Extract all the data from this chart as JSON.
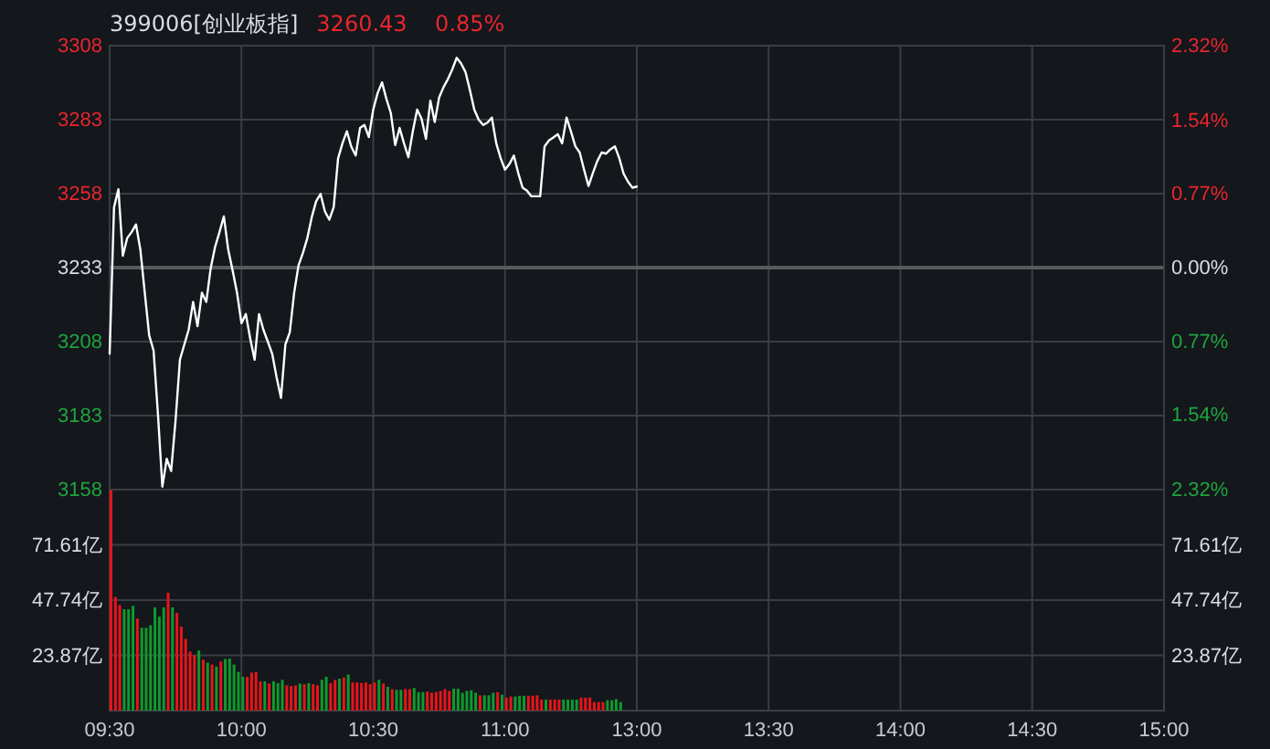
{
  "chart_data": [
    {
      "type": "line",
      "title": "399006[创业板指]",
      "subtitle": "3260.43    0.85%",
      "categories": [
        null,
        null,
        null,
        null,
        null,
        null,
        null,
        null,
        null,
        null,
        null,
        null,
        null,
        null,
        null,
        null,
        null,
        null,
        null,
        null,
        null,
        null,
        null,
        null,
        null,
        null,
        null,
        null,
        null,
        null,
        null,
        null,
        null,
        null,
        null,
        null,
        null,
        null,
        null,
        null,
        null,
        null,
        null,
        null,
        null,
        null,
        null,
        null,
        null,
        null,
        null,
        null,
        null,
        null,
        null,
        null,
        null,
        null,
        null,
        null,
        null,
        null,
        null,
        null,
        null,
        null,
        null,
        null,
        null,
        null,
        null,
        null,
        null,
        null,
        null,
        null,
        null,
        null,
        null,
        null,
        null,
        null,
        null,
        null,
        null,
        null,
        null,
        null,
        null,
        null,
        null,
        null,
        null,
        null,
        null,
        null,
        null,
        null,
        null,
        null,
        null,
        null,
        null,
        null,
        null,
        null,
        null,
        null,
        null,
        null,
        null,
        null,
        null,
        null,
        null,
        null,
        null,
        null,
        null,
        null,
        null,
        null,
        null,
        null,
        null,
        null,
        null,
        null,
        null,
        null,
        null,
        null,
        null,
        null,
        null,
        null,
        null,
        null,
        null,
        null,
        null,
        null,
        null,
        null,
        null,
        null,
        null,
        null,
        null,
        null,
        null,
        null,
        null,
        null,
        null,
        null,
        null,
        null,
        null,
        null,
        null,
        null,
        null,
        null,
        null,
        null,
        null,
        null,
        null,
        null,
        null,
        null,
        null,
        null,
        null,
        null,
        null,
        null,
        null,
        null,
        null,
        null,
        null,
        null,
        null,
        null,
        null,
        null,
        null,
        null,
        null,
        null,
        null,
        null,
        null,
        null,
        null,
        null,
        null,
        null,
        null,
        null,
        null,
        null,
        null,
        null,
        null,
        null,
        null,
        null,
        null,
        null,
        null,
        null,
        null,
        null,
        null,
        null,
        null,
        null,
        null,
        null,
        null,
        null,
        null,
        null,
        null,
        null,
        null,
        null,
        null,
        null,
        null,
        null,
        null,
        null,
        null,
        null,
        null,
        null,
        null
      ],
      "ylim": [
        3158,
        3308
      ],
      "yticks": [
        3158,
        3183,
        3208,
        3233,
        3258,
        3283,
        3308
      ],
      "y2lim": [
        -2.32,
        2.32
      ],
      "y2ticks": [
        {
          "value": -2.32,
          "label": "2.32%"
        },
        {
          "value": -1.54,
          "label": "1.54%"
        },
        {
          "value": -0.77,
          "label": "0.77%"
        },
        {
          "value": 0,
          "label": "0.00%"
        },
        {
          "value": 0.77,
          "label": "0.77%"
        },
        {
          "value": 1.54,
          "label": "1.54%"
        },
        {
          "value": 2.32,
          "label": "2.32%"
        }
      ],
      "tick_labels": "y",
      "grid": true,
      "marker": "none",
      "line_style": "solid",
      "ref_lines": [
        {
          "axis": "y",
          "value": 3233,
          "color": "#5a5a5a"
        }
      ],
      "series": [
        {
          "color": "#ffffff",
          "values": [
            3203.9,
            3253.4,
            3259.5,
            3237,
            3243,
            3245,
            3247.6,
            3239,
            3224.5,
            3210.1,
            3205,
            3183.4,
            3159,
            3168.4,
            3164.3,
            3181.3,
            3201.9,
            3207,
            3212.1,
            3221.4,
            3213.2,
            3224.5,
            3221.4,
            3232.8,
            3240,
            3245,
            3250.3,
            3239,
            3232,
            3224.5,
            3214.2,
            3217.3,
            3209,
            3201.9,
            3217.3,
            3212,
            3208,
            3203.9,
            3196,
            3189,
            3207,
            3211.1,
            3224.5,
            3233.8,
            3238,
            3243,
            3250,
            3255.4,
            3257.9,
            3252,
            3249.2,
            3253.4,
            3269.9,
            3275,
            3279.1,
            3273.9,
            3270.9,
            3280.2,
            3281.2,
            3277.1,
            3286.4,
            3292,
            3295.6,
            3290,
            3285.3,
            3274.4,
            3280.2,
            3275,
            3270.3,
            3279,
            3286.4,
            3283.3,
            3276.5,
            3289.4,
            3282.2,
            3290.5,
            3294,
            3296.7,
            3300,
            3303.9,
            3302,
            3299.1,
            3293,
            3286.4,
            3283,
            3281.2,
            3282,
            3283.7,
            3275,
            3270,
            3266.1,
            3268,
            3270.9,
            3265,
            3260,
            3259,
            3257.1,
            3257.1,
            3257.1,
            3274,
            3276,
            3277,
            3278.1,
            3275,
            3283.7,
            3279,
            3274,
            3271.9,
            3266,
            3260.6,
            3265,
            3269,
            3271.9,
            3271.5,
            3273,
            3274,
            3270,
            3264.7,
            3262,
            3260,
            3260.4,
            null,
            null,
            null,
            null,
            null,
            null,
            null,
            null,
            null,
            null,
            null,
            null,
            null,
            null,
            null,
            null,
            null,
            null,
            null,
            null,
            null,
            null,
            null,
            null,
            null,
            null,
            null,
            null,
            null,
            null,
            null,
            null,
            null,
            null,
            null,
            null,
            null,
            null,
            null,
            null,
            null,
            null,
            null,
            null,
            null,
            null,
            null,
            null,
            null,
            null,
            null,
            null,
            null,
            null,
            null,
            null,
            null,
            null,
            null,
            null,
            null,
            null,
            null,
            null,
            null,
            null,
            null,
            null,
            null,
            null,
            null,
            null,
            null,
            null,
            null,
            null,
            null,
            null,
            null,
            null,
            null,
            null,
            null,
            null,
            null,
            null,
            null,
            null,
            null,
            null,
            null,
            null,
            null,
            null,
            null,
            null,
            null,
            null,
            null,
            null,
            null,
            null,
            null,
            null,
            null,
            null,
            null,
            null,
            null,
            null,
            null,
            null,
            null,
            null,
            null,
            null,
            null,
            null,
            null,
            null
          ]
        }
      ]
    },
    {
      "type": "bar",
      "categories": [
        "09:30",
        null,
        null,
        null,
        null,
        null,
        null,
        null,
        null,
        null,
        null,
        null,
        null,
        null,
        null,
        null,
        null,
        null,
        null,
        null,
        null,
        null,
        null,
        null,
        null,
        null,
        null,
        null,
        null,
        null,
        "10:00",
        null,
        null,
        null,
        null,
        null,
        null,
        null,
        null,
        null,
        null,
        null,
        null,
        null,
        null,
        null,
        null,
        null,
        null,
        null,
        null,
        null,
        null,
        null,
        null,
        null,
        null,
        null,
        null,
        null,
        "10:30",
        null,
        null,
        null,
        null,
        null,
        null,
        null,
        null,
        null,
        null,
        null,
        null,
        null,
        null,
        null,
        null,
        null,
        null,
        null,
        null,
        null,
        null,
        null,
        null,
        null,
        null,
        null,
        null,
        null,
        "11:00",
        null,
        null,
        null,
        null,
        null,
        null,
        null,
        null,
        null,
        null,
        null,
        null,
        null,
        null,
        null,
        null,
        null,
        null,
        null,
        null,
        null,
        null,
        null,
        null,
        null,
        null,
        null,
        null,
        null,
        "13:00",
        null,
        null,
        null,
        null,
        null,
        null,
        null,
        null,
        null,
        null,
        null,
        null,
        null,
        null,
        null,
        null,
        null,
        null,
        null,
        null,
        null,
        null,
        null,
        null,
        null,
        null,
        null,
        null,
        null,
        "13:30",
        null,
        null,
        null,
        null,
        null,
        null,
        null,
        null,
        null,
        null,
        null,
        null,
        null,
        null,
        null,
        null,
        null,
        null,
        null,
        null,
        null,
        null,
        null,
        null,
        null,
        null,
        null,
        null,
        null,
        "14:00",
        null,
        null,
        null,
        null,
        null,
        null,
        null,
        null,
        null,
        null,
        null,
        null,
        null,
        null,
        null,
        null,
        null,
        null,
        null,
        null,
        null,
        null,
        null,
        null,
        null,
        null,
        null,
        null,
        null,
        "14:30",
        null,
        null,
        null,
        null,
        null,
        null,
        null,
        null,
        null,
        null,
        null,
        null,
        null,
        null,
        null,
        null,
        null,
        null,
        null,
        null,
        null,
        null,
        null,
        null,
        null,
        null,
        null,
        null,
        null,
        "15:00"
      ],
      "ylim": [
        0,
        95.48
      ],
      "yticks": [
        {
          "value": 23.87,
          "label": "23.87亿"
        },
        {
          "value": 47.74,
          "label": "47.74亿"
        },
        {
          "value": 71.61,
          "label": "71.61亿"
        }
      ],
      "y2lim": [
        0,
        95.48
      ],
      "y2ticks": [
        {
          "value": 23.87,
          "label": "23.87亿"
        },
        {
          "value": 47.74,
          "label": "47.74亿"
        },
        {
          "value": 71.61,
          "label": "71.61亿"
        }
      ],
      "grid": true,
      "series": [
        {
          "values": [
            95.2,
            49.1,
            45.6,
            43.8,
            43.8,
            45.3,
            39.8,
            35.8,
            35.8,
            36.9,
            44.6,
            40.6,
            44.6,
            50.9,
            44.6,
            42.2,
            36.3,
            31,
            25.5,
            23.9,
            26,
            22,
            20.7,
            19.9,
            19.1,
            21.2,
            22.3,
            22.5,
            19.9,
            16.7,
            14.6,
            14.6,
            16.4,
            16.7,
            12.7,
            12.7,
            11.7,
            12.7,
            11.9,
            13.3,
            10.9,
            10.6,
            10.9,
            11.7,
            11.4,
            11.9,
            11.4,
            10.9,
            13.3,
            14.6,
            11.9,
            13.3,
            13.8,
            14.3,
            15.6,
            12.2,
            12.2,
            11.9,
            12.2,
            11.4,
            12.2,
            13.3,
            11.7,
            10.3,
            9.3,
            9,
            9,
            9.3,
            9.3,
            9.8,
            8,
            8,
            8.2,
            7.7,
            8,
            8.5,
            9.3,
            8.5,
            9.5,
            9.5,
            7.7,
            8.5,
            8.8,
            7.7,
            6.6,
            6.6,
            6.6,
            7.7,
            8,
            6.9,
            5.6,
            6.1,
            6.1,
            6.4,
            6.4,
            6.4,
            6.4,
            6.6,
            4.8,
            4.8,
            4.8,
            4.8,
            4.8,
            4.8,
            4.8,
            4.8,
            4.8,
            5.6,
            5.6,
            5.6,
            3.7,
            3.7,
            3.7,
            4.5,
            4.5,
            5,
            3.7,
            null,
            null,
            null,
            null,
            null,
            null,
            null,
            null,
            null,
            null,
            null,
            null,
            null,
            null,
            null,
            null,
            null,
            null,
            null,
            null,
            null,
            null,
            null,
            null,
            null,
            null,
            null,
            null,
            null,
            null,
            null,
            null,
            null,
            null,
            null,
            null,
            null,
            null,
            null,
            null,
            null,
            null,
            null,
            null,
            null,
            null,
            null,
            null,
            null,
            null,
            null,
            null,
            null,
            null,
            null,
            null,
            null,
            null,
            null,
            null,
            null,
            null,
            null,
            null,
            null,
            null,
            null,
            null,
            null,
            null,
            null,
            null,
            null,
            null,
            null,
            null,
            null,
            null,
            null,
            null,
            null,
            null,
            null,
            null,
            null,
            null,
            null,
            null,
            null,
            null,
            null,
            null,
            null,
            null,
            null,
            null,
            null,
            null,
            null,
            null,
            null,
            null,
            null,
            null,
            null,
            null,
            null,
            null,
            null,
            null,
            null,
            null,
            null,
            null,
            null,
            null,
            null,
            null,
            null,
            null,
            null,
            null,
            null,
            null
          ],
          "colors": [
            "#e8141b",
            "#e8141b",
            "#e8141b",
            "#0e9a2d",
            "#0e9a2d",
            "#0e9a2d",
            "#e8141b",
            "#0e9a2d",
            "#0e9a2d",
            "#0e9a2d",
            "#0e9a2d",
            "#0e9a2d",
            "#0e9a2d",
            "#e8141b",
            "#0e9a2d",
            "#e8141b",
            "#e8141b",
            "#e8141b",
            "#e8141b",
            "#e8141b",
            "#0e9a2d",
            "#e8141b",
            "#0e9a2d",
            "#e8141b",
            "#0e9a2d",
            "#e8141b",
            "#0e9a2d",
            "#0e9a2d",
            "#0e9a2d",
            "#0e9a2d",
            "#0e9a2d",
            "#e8141b",
            "#e8141b",
            "#e8141b",
            "#e8141b",
            "#0e9a2d",
            "#e8141b",
            "#0e9a2d",
            "#0e9a2d",
            "#0e9a2d",
            "#e8141b",
            "#e8141b",
            "#e8141b",
            "#0e9a2d",
            "#e8141b",
            "#0e9a2d",
            "#e8141b",
            "#e8141b",
            "#0e9a2d",
            "#0e9a2d",
            "#e8141b",
            "#e8141b",
            "#0e9a2d",
            "#e8141b",
            "#0e9a2d",
            "#e8141b",
            "#e8141b",
            "#e8141b",
            "#e8141b",
            "#e8141b",
            "#e8141b",
            "#0e9a2d",
            "#e8141b",
            "#0e9a2d",
            "#e8141b",
            "#0e9a2d",
            "#0e9a2d",
            "#e8141b",
            "#e8141b",
            "#0e9a2d",
            "#0e9a2d",
            "#0e9a2d",
            "#e8141b",
            "#e8141b",
            "#e8141b",
            "#e8141b",
            "#e8141b",
            "#e8141b",
            "#0e9a2d",
            "#0e9a2d",
            "#0e9a2d",
            "#0e9a2d",
            "#0e9a2d",
            "#0e9a2d",
            "#e8141b",
            "#0e9a2d",
            "#0e9a2d",
            "#0e9a2d",
            "#e8141b",
            "#0e9a2d",
            "#e8141b",
            "#e8141b",
            "#0e9a2d",
            "#0e9a2d",
            "#0e9a2d",
            "#e8141b",
            "#e8141b",
            "#e8141b",
            "#e8141b",
            "#0e9a2d",
            "#e8141b",
            "#e8141b",
            "#e8141b",
            "#0e9a2d",
            "#0e9a2d",
            "#0e9a2d",
            "#0e9a2d",
            "#e8141b",
            "#e8141b",
            "#e8141b",
            "#e8141b",
            "#e8141b",
            "#e8141b",
            "#0e9a2d",
            "#0e9a2d",
            "#0e9a2d",
            "#0e9a2d",
            null,
            null,
            null,
            null,
            null,
            null,
            null,
            null,
            null,
            null,
            null,
            null,
            null,
            null,
            null,
            null,
            null,
            null,
            null,
            null,
            null,
            null,
            null,
            null,
            null,
            null,
            null,
            null,
            null,
            null,
            null,
            null,
            null,
            null,
            null,
            null,
            null,
            null,
            null,
            null,
            null,
            null,
            null,
            null,
            null,
            null,
            null,
            null,
            null,
            null,
            null,
            null,
            null,
            null,
            null,
            null,
            null,
            null,
            null,
            null,
            null,
            null,
            null,
            null,
            null,
            null,
            null,
            null,
            null,
            null,
            null,
            null,
            null,
            null,
            null,
            null,
            null,
            null,
            null,
            null,
            null,
            null,
            null,
            null,
            null,
            null,
            null,
            null,
            null,
            null,
            null,
            null,
            null,
            null,
            null,
            null,
            null,
            null,
            null,
            null,
            null,
            null,
            null,
            null,
            null,
            null,
            null,
            null,
            null,
            null,
            null,
            null,
            null,
            null,
            null,
            null,
            null,
            null,
            null,
            null,
            null,
            null,
            null,
            null
          ]
        }
      ]
    }
  ]
}
